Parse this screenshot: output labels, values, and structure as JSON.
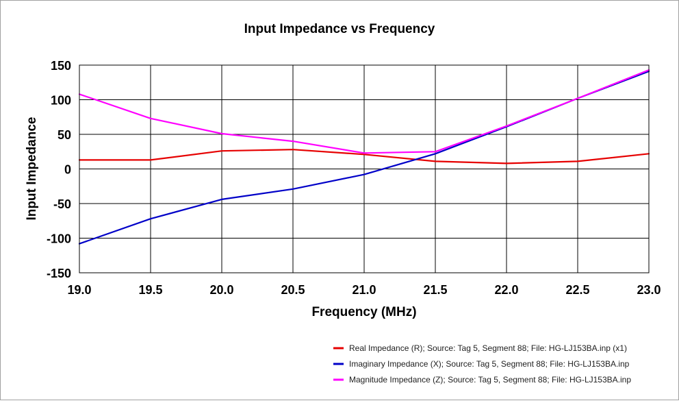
{
  "chart_data": {
    "type": "line",
    "title": "Input Impedance vs Frequency",
    "xlabel": "Frequency (MHz)",
    "ylabel": "Input Impedance",
    "xlim": [
      19.0,
      23.0
    ],
    "ylim": [
      -150,
      150
    ],
    "x_ticks": [
      "19.0",
      "19.5",
      "20.0",
      "20.5",
      "21.0",
      "21.5",
      "22.0",
      "22.5",
      "23.0"
    ],
    "y_ticks": [
      "150",
      "100",
      "50",
      "0",
      "-50",
      "-100",
      "-150"
    ],
    "grid": true,
    "legend_position": "bottom-right",
    "series": [
      {
        "name": "Real Impedance (R); Source: Tag 5, Segment 88; File: HG-LJ153BA.inp (x1)",
        "color": "#e60000",
        "x": [
          19.0,
          19.5,
          20.0,
          20.5,
          21.0,
          21.5,
          22.0,
          22.5,
          23.0
        ],
        "y": [
          13,
          13,
          26,
          28,
          21,
          11,
          8,
          11,
          22
        ]
      },
      {
        "name": "Imaginary Impedance (X); Source: Tag 5, Segment 88; File: HG-LJ153BA.inp",
        "color": "#0000c8",
        "x": [
          19.0,
          19.5,
          20.0,
          20.5,
          21.0,
          21.5,
          22.0,
          22.5,
          23.0
        ],
        "y": [
          -108,
          -72,
          -44,
          -29,
          -8,
          22,
          61,
          102,
          141
        ]
      },
      {
        "name": "Magnitude Impedance (Z); Source: Tag 5, Segment 88; File: HG-LJ153BA.inp",
        "color": "#ff00ff",
        "x": [
          19.0,
          19.5,
          20.0,
          20.5,
          21.0,
          21.5,
          22.0,
          22.5,
          23.0
        ],
        "y": [
          108,
          73,
          51,
          40,
          23,
          25,
          62,
          102,
          143
        ]
      }
    ]
  }
}
